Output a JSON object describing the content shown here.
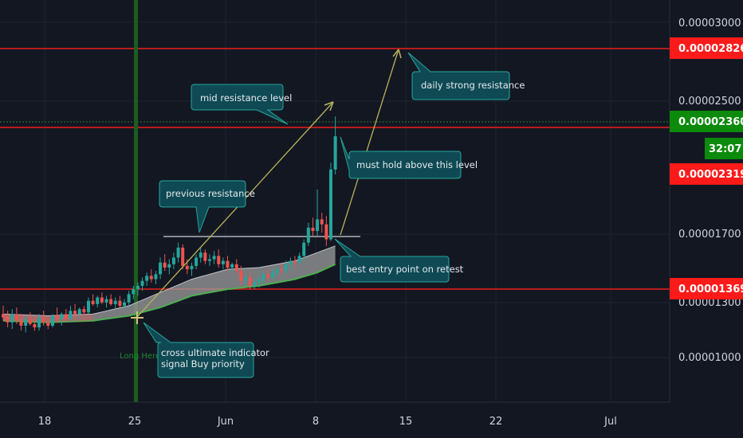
{
  "colors": {
    "background": "#131722",
    "grid": "#1f2330",
    "up": "#26a69a",
    "down": "#ef5350",
    "resistance": "#b71c1c",
    "price_tag": "#ff1a1a",
    "last_tag": "#0b8a0b",
    "marker_line": "#1b5e20",
    "callout_fill": "#0f4a54",
    "callout_stroke": "#26a69a",
    "arrow": "#b5b35a"
  },
  "chart_data": {
    "type": "candlestick",
    "x_tick_labels": [
      "18",
      "25",
      "Jun",
      "8",
      "15",
      "22",
      "Jul"
    ],
    "y_tick_labels": [
      "0.00003000",
      "0.00002500",
      "0.00001700",
      "0.00001300",
      "0.00001000"
    ],
    "ylim": [
      7.6e-06,
      3.18e-05
    ],
    "price_tags": [
      "0.00002826",
      "0.00002360",
      "0.00002319",
      "0.00001369"
    ],
    "countdown": "32:07",
    "resistance_levels": [
      2.826e-05,
      2.319e-05,
      1.369e-05
    ],
    "support_level": 1.7e-05,
    "marker_label": "Long Here",
    "candles": [
      {
        "o": 12.9,
        "h": 13.4,
        "l": 12.5,
        "c": 12.7
      },
      {
        "o": 12.7,
        "h": 13.1,
        "l": 12.1,
        "c": 12.4
      },
      {
        "o": 12.4,
        "h": 13.2,
        "l": 12.0,
        "c": 12.9
      },
      {
        "o": 12.9,
        "h": 13.3,
        "l": 12.3,
        "c": 12.5
      },
      {
        "o": 12.5,
        "h": 12.9,
        "l": 11.9,
        "c": 12.2
      },
      {
        "o": 12.2,
        "h": 12.8,
        "l": 11.8,
        "c": 12.6
      },
      {
        "o": 12.6,
        "h": 13.0,
        "l": 12.2,
        "c": 12.3
      },
      {
        "o": 12.3,
        "h": 12.7,
        "l": 11.9,
        "c": 12.1
      },
      {
        "o": 12.1,
        "h": 12.9,
        "l": 11.9,
        "c": 12.7
      },
      {
        "o": 12.7,
        "h": 13.1,
        "l": 12.2,
        "c": 12.4
      },
      {
        "o": 12.4,
        "h": 12.7,
        "l": 12.0,
        "c": 12.2
      },
      {
        "o": 12.2,
        "h": 12.9,
        "l": 12.1,
        "c": 12.8
      },
      {
        "o": 12.8,
        "h": 13.3,
        "l": 12.4,
        "c": 12.6
      },
      {
        "o": 12.6,
        "h": 13.0,
        "l": 12.2,
        "c": 12.9
      },
      {
        "o": 12.9,
        "h": 13.2,
        "l": 12.5,
        "c": 12.6
      },
      {
        "o": 12.6,
        "h": 13.4,
        "l": 12.4,
        "c": 13.1
      },
      {
        "o": 13.1,
        "h": 13.5,
        "l": 12.7,
        "c": 12.9
      },
      {
        "o": 12.9,
        "h": 13.3,
        "l": 12.6,
        "c": 13.2
      },
      {
        "o": 13.2,
        "h": 13.4,
        "l": 12.8,
        "c": 13.0
      },
      {
        "o": 13.0,
        "h": 13.9,
        "l": 12.9,
        "c": 13.7
      },
      {
        "o": 13.7,
        "h": 14.1,
        "l": 13.4,
        "c": 13.5
      },
      {
        "o": 13.5,
        "h": 14.0,
        "l": 13.3,
        "c": 13.9
      },
      {
        "o": 13.9,
        "h": 14.2,
        "l": 13.5,
        "c": 13.6
      },
      {
        "o": 13.6,
        "h": 14.0,
        "l": 13.3,
        "c": 13.8
      },
      {
        "o": 13.8,
        "h": 14.1,
        "l": 13.4,
        "c": 13.5
      },
      {
        "o": 13.5,
        "h": 13.9,
        "l": 13.2,
        "c": 13.7
      },
      {
        "o": 13.7,
        "h": 14.0,
        "l": 13.3,
        "c": 13.4
      },
      {
        "o": 13.4,
        "h": 13.8,
        "l": 13.2,
        "c": 13.6
      },
      {
        "o": 13.6,
        "h": 14.3,
        "l": 13.4,
        "c": 14.1
      },
      {
        "o": 14.1,
        "h": 14.6,
        "l": 13.8,
        "c": 14.4
      },
      {
        "o": 14.4,
        "h": 14.8,
        "l": 14.0,
        "c": 14.6
      },
      {
        "o": 14.6,
        "h": 15.1,
        "l": 14.3,
        "c": 14.9
      },
      {
        "o": 14.9,
        "h": 15.4,
        "l": 14.6,
        "c": 15.2
      },
      {
        "o": 15.2,
        "h": 15.6,
        "l": 14.8,
        "c": 15.0
      },
      {
        "o": 15.0,
        "h": 15.5,
        "l": 14.7,
        "c": 15.3
      },
      {
        "o": 15.3,
        "h": 16.3,
        "l": 15.0,
        "c": 16.0
      },
      {
        "o": 16.0,
        "h": 16.5,
        "l": 15.5,
        "c": 15.7
      },
      {
        "o": 15.7,
        "h": 16.2,
        "l": 15.3,
        "c": 15.9
      },
      {
        "o": 15.9,
        "h": 16.6,
        "l": 15.6,
        "c": 16.3
      },
      {
        "o": 16.3,
        "h": 17.2,
        "l": 16.0,
        "c": 16.9
      },
      {
        "o": 16.9,
        "h": 17.1,
        "l": 15.6,
        "c": 15.8
      },
      {
        "o": 15.8,
        "h": 16.2,
        "l": 15.3,
        "c": 15.6
      },
      {
        "o": 15.6,
        "h": 16.0,
        "l": 15.2,
        "c": 15.8
      },
      {
        "o": 15.8,
        "h": 16.5,
        "l": 15.6,
        "c": 16.3
      },
      {
        "o": 16.3,
        "h": 16.9,
        "l": 16.0,
        "c": 16.6
      },
      {
        "o": 16.6,
        "h": 16.8,
        "l": 15.9,
        "c": 16.1
      },
      {
        "o": 16.1,
        "h": 16.5,
        "l": 15.8,
        "c": 16.2
      },
      {
        "o": 16.2,
        "h": 16.7,
        "l": 15.9,
        "c": 16.4
      },
      {
        "o": 16.4,
        "h": 16.8,
        "l": 15.7,
        "c": 15.9
      },
      {
        "o": 15.9,
        "h": 16.3,
        "l": 15.6,
        "c": 16.1
      },
      {
        "o": 16.1,
        "h": 16.4,
        "l": 15.5,
        "c": 15.7
      },
      {
        "o": 15.7,
        "h": 16.0,
        "l": 15.4,
        "c": 15.9
      },
      {
        "o": 15.9,
        "h": 16.2,
        "l": 15.3,
        "c": 15.5
      },
      {
        "o": 15.5,
        "h": 15.8,
        "l": 14.7,
        "c": 14.9
      },
      {
        "o": 14.9,
        "h": 15.3,
        "l": 14.6,
        "c": 15.1
      },
      {
        "o": 15.1,
        "h": 15.4,
        "l": 14.4,
        "c": 14.6
      },
      {
        "o": 14.6,
        "h": 15.0,
        "l": 14.4,
        "c": 14.8
      },
      {
        "o": 14.8,
        "h": 15.2,
        "l": 14.5,
        "c": 15.0
      },
      {
        "o": 15.0,
        "h": 15.5,
        "l": 14.8,
        "c": 15.3
      },
      {
        "o": 15.3,
        "h": 15.6,
        "l": 14.9,
        "c": 15.1
      },
      {
        "o": 15.1,
        "h": 15.6,
        "l": 15.0,
        "c": 15.4
      },
      {
        "o": 15.4,
        "h": 15.8,
        "l": 15.2,
        "c": 15.6
      },
      {
        "o": 15.6,
        "h": 16.0,
        "l": 15.3,
        "c": 15.5
      },
      {
        "o": 15.5,
        "h": 16.1,
        "l": 15.3,
        "c": 15.9
      },
      {
        "o": 15.9,
        "h": 16.3,
        "l": 15.6,
        "c": 16.1
      },
      {
        "o": 16.1,
        "h": 16.4,
        "l": 15.8,
        "c": 16.0
      },
      {
        "o": 16.0,
        "h": 16.6,
        "l": 15.9,
        "c": 16.4
      },
      {
        "o": 16.4,
        "h": 17.4,
        "l": 16.2,
        "c": 17.2
      },
      {
        "o": 17.2,
        "h": 18.4,
        "l": 17.0,
        "c": 18.1
      },
      {
        "o": 18.1,
        "h": 18.7,
        "l": 17.6,
        "c": 17.9
      },
      {
        "o": 17.9,
        "h": 20.4,
        "l": 17.6,
        "c": 18.6
      },
      {
        "o": 18.6,
        "h": 19.0,
        "l": 17.8,
        "c": 18.3
      },
      {
        "o": 18.3,
        "h": 18.8,
        "l": 17.0,
        "c": 17.4
      },
      {
        "o": 17.4,
        "h": 22.0,
        "l": 17.3,
        "c": 21.6
      },
      {
        "o": 21.6,
        "h": 24.8,
        "l": 21.3,
        "c": 23.6
      }
    ],
    "ema_band": {
      "x_index": [
        0,
        10,
        20,
        28,
        35,
        42,
        50,
        57,
        65,
        70,
        74
      ],
      "upper": [
        12.9,
        12.8,
        12.9,
        13.4,
        14.2,
        15.0,
        15.6,
        15.7,
        16.1,
        16.6,
        17.0
      ],
      "lower": [
        12.5,
        12.4,
        12.5,
        12.8,
        13.3,
        14.0,
        14.4,
        14.6,
        15.0,
        15.4,
        15.9
      ]
    }
  },
  "annotations": {
    "mid_resistance": "mid resistance level",
    "daily_resistance": "daily strong resistance",
    "must_hold": "must hold above this level",
    "previous_resistance": "previous resistance",
    "best_entry": "best entry point on retest",
    "cross_line1": "cross ultimate indicator",
    "cross_line2": "signal Buy priority"
  }
}
